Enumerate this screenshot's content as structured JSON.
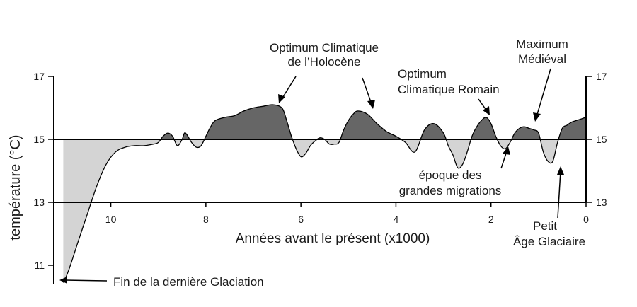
{
  "chart_data": {
    "type": "area",
    "xlabel": "Années avant le présent (x1000)",
    "ylabel": "température (°C)",
    "xlim": [
      11.2,
      0
    ],
    "ylim": [
      10.4,
      17
    ],
    "baseline": 15,
    "x_ticks": [
      10,
      8,
      6,
      4,
      2,
      0
    ],
    "x_tick_labels": [
      "10",
      "8",
      "6",
      "4",
      "2",
      "0"
    ],
    "y_ticks": [
      11,
      13,
      15,
      17
    ],
    "y_tick_labels_left": [
      "11",
      "13",
      "15",
      "17"
    ],
    "y_tick_labels_right": [
      "13",
      "15",
      "17"
    ],
    "colors": {
      "above": "#666666",
      "below": "#d4d4d4",
      "line": "#000000"
    },
    "series": [
      {
        "x": [
          11.0,
          10.95,
          10.85,
          10.7,
          10.5,
          10.3,
          10.1,
          9.9,
          9.7,
          9.5,
          9.3,
          9.1,
          9.0,
          8.9,
          8.8,
          8.7,
          8.6,
          8.5,
          8.45,
          8.4,
          8.3,
          8.2,
          8.1,
          8.0,
          7.9,
          7.8,
          7.6,
          7.4,
          7.2,
          7.0,
          6.8,
          6.6,
          6.4,
          6.3,
          6.2,
          6.1,
          6.0,
          5.9,
          5.8,
          5.7,
          5.6,
          5.5,
          5.4,
          5.3,
          5.2,
          5.1,
          5.0,
          4.9,
          4.8,
          4.6,
          4.4,
          4.2,
          4.0,
          3.8,
          3.6,
          3.4,
          3.2,
          3.0,
          2.9,
          2.8,
          2.7,
          2.6,
          2.5,
          2.4,
          2.3,
          2.2,
          2.1,
          2.0,
          1.9,
          1.8,
          1.7,
          1.6,
          1.5,
          1.4,
          1.3,
          1.2,
          1.1,
          1.0,
          0.9,
          0.8,
          0.7,
          0.6,
          0.5,
          0.4,
          0.3,
          0.2,
          0.1,
          0.0
        ],
        "y": [
          10.45,
          10.6,
          11.0,
          11.7,
          12.6,
          13.5,
          14.2,
          14.6,
          14.75,
          14.8,
          14.8,
          14.85,
          14.9,
          15.1,
          15.2,
          15.1,
          14.8,
          15.0,
          15.2,
          15.15,
          14.9,
          14.75,
          14.8,
          15.1,
          15.4,
          15.6,
          15.7,
          15.75,
          15.9,
          16.0,
          16.05,
          16.1,
          16.0,
          15.6,
          15.1,
          14.7,
          14.45,
          14.55,
          14.8,
          14.95,
          15.05,
          15.0,
          14.85,
          14.85,
          14.9,
          15.3,
          15.6,
          15.8,
          15.9,
          15.8,
          15.5,
          15.25,
          15.1,
          14.9,
          14.6,
          15.3,
          15.5,
          15.2,
          14.8,
          14.5,
          14.1,
          14.2,
          14.6,
          15.1,
          15.4,
          15.6,
          15.7,
          15.5,
          15.1,
          14.8,
          14.7,
          14.9,
          15.2,
          15.35,
          15.4,
          15.35,
          15.3,
          15.2,
          14.6,
          14.3,
          14.3,
          14.9,
          15.35,
          15.45,
          15.55,
          15.6,
          15.65,
          15.7
        ]
      }
    ],
    "annotations": [
      {
        "id": "holocene",
        "lines": [
          "Optimum Climatique",
          "de l’Holocène"
        ]
      },
      {
        "id": "roman",
        "lines": [
          "Optimum",
          "Climatique Romain"
        ]
      },
      {
        "id": "medieval",
        "lines": [
          "Maximum",
          "Médiéval"
        ]
      },
      {
        "id": "migrations",
        "lines": [
          "époque des",
          "grandes migrations"
        ]
      },
      {
        "id": "lia",
        "lines": [
          "Petit",
          "Âge Glaciaire"
        ]
      },
      {
        "id": "glaciation",
        "lines": [
          "Fin de la dernière Glaciation"
        ]
      }
    ]
  }
}
